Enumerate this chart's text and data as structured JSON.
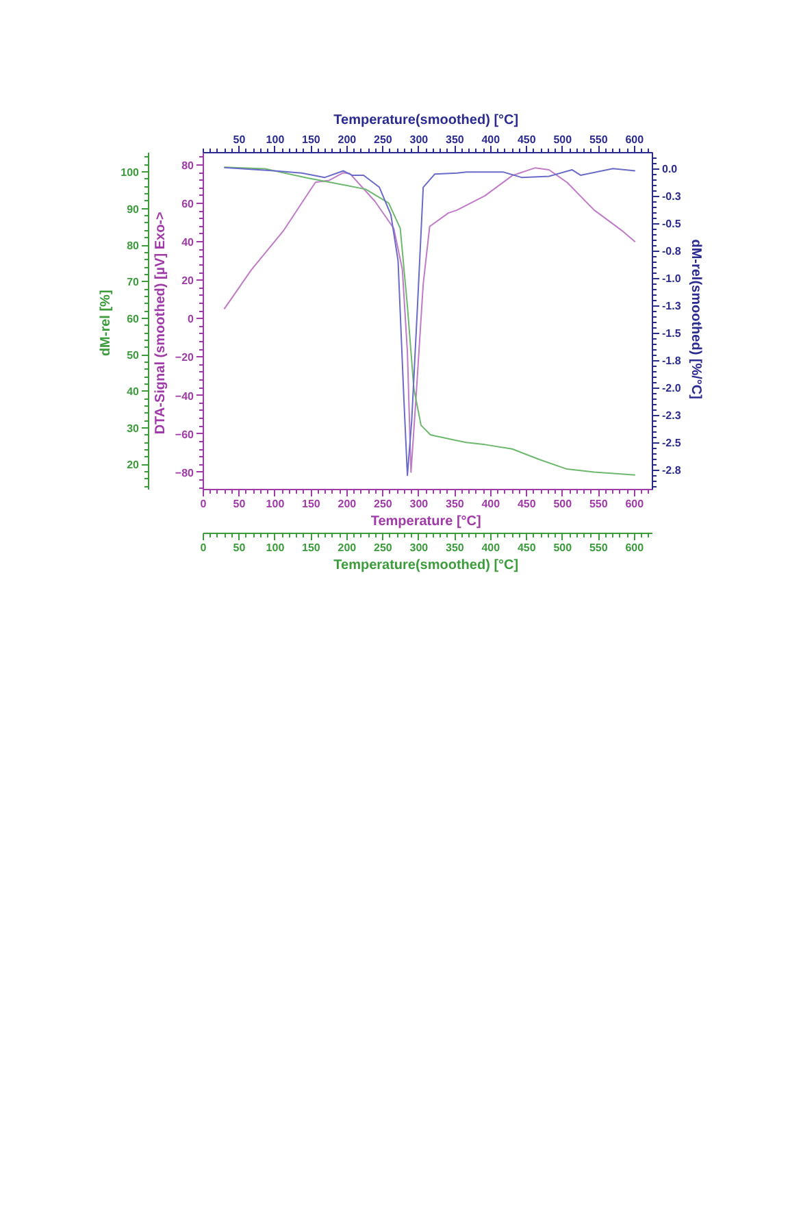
{
  "chart_data": {
    "type": "line",
    "xlabel": "Temperature  [°C]",
    "x2label": "Temperature(smoothed)  [°C]",
    "ylabel": "DTA-Signal (smoothed)  [µV] Exo->",
    "y2label": "dM-rel(smoothed)  [%/°C]",
    "y3label": "dM-rel  [%]",
    "xlim": [
      0,
      625
    ],
    "xticks": [
      0,
      50,
      100,
      150,
      200,
      250,
      300,
      350,
      400,
      450,
      500,
      550,
      600
    ],
    "x2lim": [
      0,
      625
    ],
    "x2ticks": [
      50,
      100,
      150,
      200,
      250,
      300,
      350,
      400,
      450,
      500,
      550,
      600
    ],
    "annotations": [
      "Temperature(smoothed)  [°C]",
      "0",
      "50",
      "100",
      "150",
      "200",
      "250",
      "300",
      "350",
      "400",
      "450",
      "500",
      "550",
      "600"
    ],
    "ylim": [
      -89,
      86.4
    ],
    "yticks": [
      -80,
      -60,
      -40,
      -20,
      0,
      20,
      40,
      60,
      80
    ],
    "y2lim": [
      -2.93,
      0.146
    ],
    "y2ticks": [
      {
        "value": 0,
        "label": "0.0"
      },
      {
        "value": -0.25,
        "label": "-0.3"
      },
      {
        "value": -0.5,
        "label": "-0.5"
      },
      {
        "value": -0.75,
        "label": "-0.8"
      },
      {
        "value": -1.0,
        "label": "-1.0"
      },
      {
        "value": -1.25,
        "label": "-1.3"
      },
      {
        "value": -1.5,
        "label": "-1.5"
      },
      {
        "value": -1.75,
        "label": "-1.8"
      },
      {
        "value": -2.0,
        "label": "-2.0"
      },
      {
        "value": -2.25,
        "label": "-2.3"
      },
      {
        "value": -2.5,
        "label": "-2.5"
      },
      {
        "value": -2.75,
        "label": "-2.8"
      }
    ],
    "y3lim": [
      13.1,
      105.3
    ],
    "y3ticks": [
      20,
      30,
      40,
      50,
      60,
      70,
      80,
      90,
      100
    ],
    "grid": false,
    "series": [
      {
        "axis": "y",
        "color": "#c07ac8",
        "x": [
          29,
          67,
          112,
          156,
          175,
          195,
          204,
          239,
          265,
          277,
          284,
          289,
          296,
          306,
          315,
          341,
          353,
          366,
          392,
          430,
          462,
          481,
          506,
          544,
          582,
          601
        ],
        "values": [
          5,
          25.5,
          46,
          71,
          72,
          76,
          75.5,
          61,
          47,
          25.5,
          -17.5,
          -80,
          -41,
          18,
          48,
          55,
          56.5,
          59,
          64,
          74.5,
          78.5,
          77.5,
          71,
          56.5,
          46,
          40
        ]
      },
      {
        "axis": "y3",
        "color": "#6cb86c",
        "x": [
          29,
          86,
          144,
          195,
          226,
          258,
          274,
          284,
          293,
          303,
          316,
          322,
          353,
          366,
          392,
          430,
          468,
          506,
          544,
          601
        ],
        "values": [
          101.3,
          100.9,
          98.4,
          96.5,
          95.3,
          91.5,
          84.6,
          63.3,
          40.7,
          30.7,
          28.1,
          27.8,
          26.5,
          26,
          25.4,
          24.2,
          21.3,
          18.7,
          17.9,
          17.1
        ]
      },
      {
        "axis": "y2",
        "color": "#6a6ac8",
        "x": [
          29,
          99,
          137,
          169,
          195,
          207,
          223,
          245,
          261,
          271,
          279,
          284,
          290,
          298,
          306,
          322,
          353,
          366,
          417,
          443,
          481,
          513,
          525,
          570,
          601
        ],
        "values": [
          0.01,
          -0.02,
          -0.04,
          -0.08,
          -0.02,
          -0.06,
          -0.06,
          -0.17,
          -0.42,
          -0.84,
          -2.09,
          -2.8,
          -2.3,
          -1.26,
          -0.17,
          -0.05,
          -0.04,
          -0.03,
          -0.03,
          -0.08,
          -0.07,
          -0.01,
          -0.06,
          0.0,
          -0.02
        ]
      }
    ]
  }
}
